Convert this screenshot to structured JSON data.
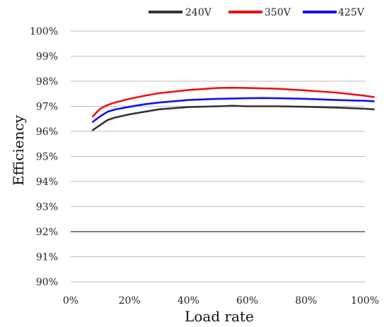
{
  "chart_data": {
    "type": "line",
    "xlabel": "Load rate",
    "ylabel": "Efficiency",
    "xlim": [
      0,
      100
    ],
    "ylim": [
      90,
      100
    ],
    "grid": "horizontal",
    "legend_position": "top-right",
    "x_tick_labels": [
      "0%",
      "20%",
      "40%",
      "60%",
      "80%",
      "100%"
    ],
    "y_tick_labels": [
      "90%",
      "91%",
      "92%",
      "93%",
      "94%",
      "95%",
      "96%",
      "97%",
      "98%",
      "99%",
      "100%"
    ],
    "x_ticks": [
      0,
      20,
      40,
      60,
      80,
      100
    ],
    "y_ticks": [
      90,
      91,
      92,
      93,
      94,
      95,
      96,
      97,
      98,
      99,
      100
    ],
    "series": [
      {
        "name": "240V",
        "color": "#333333",
        "x": [
          7.5,
          10,
          12.5,
          15,
          20,
          25,
          30,
          40,
          50,
          55,
          60,
          70,
          80,
          90,
          100,
          103
        ],
        "y": [
          96.05,
          96.25,
          96.45,
          96.55,
          96.68,
          96.78,
          96.88,
          96.97,
          97.0,
          97.02,
          97.0,
          97.0,
          96.98,
          96.95,
          96.9,
          96.88
        ]
      },
      {
        "name": "350V",
        "color": "#ee1111",
        "x": [
          7.5,
          10,
          12.5,
          15,
          20,
          25,
          30,
          40,
          50,
          55,
          60,
          70,
          80,
          90,
          100,
          103
        ],
        "y": [
          96.6,
          96.9,
          97.05,
          97.15,
          97.3,
          97.42,
          97.52,
          97.65,
          97.73,
          97.74,
          97.73,
          97.7,
          97.63,
          97.55,
          97.42,
          97.37
        ]
      },
      {
        "name": "425V",
        "color": "#1111ee",
        "x": [
          7.5,
          10,
          12.5,
          15,
          20,
          25,
          30,
          40,
          50,
          60,
          65,
          70,
          80,
          90,
          100,
          103
        ],
        "y": [
          96.38,
          96.6,
          96.78,
          96.87,
          96.98,
          97.08,
          97.15,
          97.25,
          97.3,
          97.32,
          97.33,
          97.32,
          97.3,
          97.25,
          97.22,
          97.2
        ]
      }
    ]
  }
}
